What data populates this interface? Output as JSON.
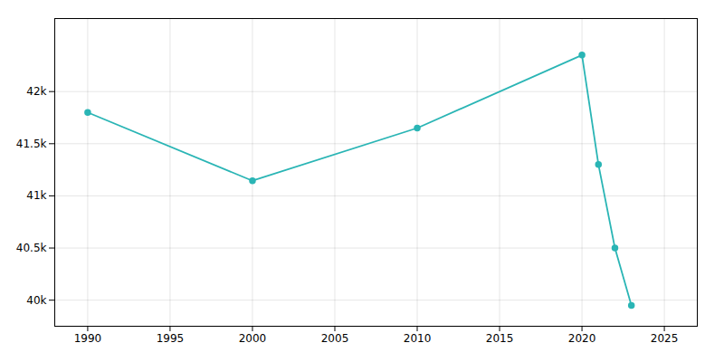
{
  "chart_data": {
    "type": "line",
    "x": [
      1990,
      2000,
      2010,
      2020,
      2021,
      2022,
      2023
    ],
    "values": [
      41800,
      41145,
      41650,
      42350,
      41300,
      40500,
      39950
    ],
    "color": "#2ab5b5",
    "marker": "o",
    "xlim": [
      1988,
      2027
    ],
    "xticks": [
      1990,
      1995,
      2000,
      2005,
      2010,
      2015,
      2020,
      2025
    ],
    "ylim": [
      39750,
      42700
    ],
    "yticks": [
      {
        "value": 40000,
        "label": "40k"
      },
      {
        "value": 40500,
        "label": "40.5k"
      },
      {
        "value": 41000,
        "label": "41k"
      },
      {
        "value": 41500,
        "label": "41.5k"
      },
      {
        "value": 42000,
        "label": "42k"
      }
    ],
    "grid": true
  }
}
